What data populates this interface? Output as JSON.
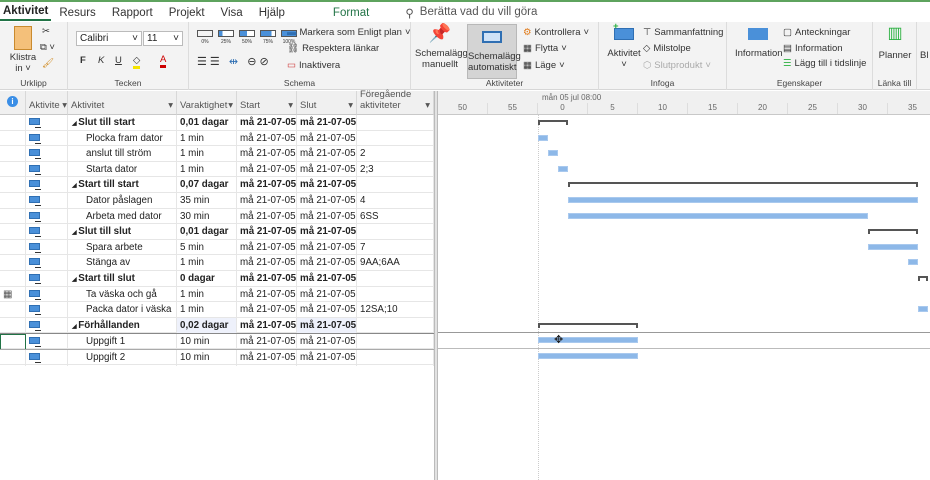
{
  "tabs": [
    "Aktivitet",
    "Resurs",
    "Rapport",
    "Projekt",
    "Visa",
    "Hjälp"
  ],
  "context_tab": "Format",
  "tell_me": "Berätta vad du vill göra",
  "ribbon": {
    "clipboard": {
      "label": "Urklipp",
      "paste": "Klistra in"
    },
    "font": {
      "label": "Tecken",
      "font_name": "Calibri",
      "font_size": "11",
      "bold": "F",
      "italic": "K",
      "underline": "U",
      "font_color": "A"
    },
    "schedule": {
      "label": "Schema",
      "pct": [
        "0%",
        "25%",
        "50%",
        "75%",
        "100%"
      ],
      "mark_on_track": "Markera som Enligt plan",
      "respect_links": "Respektera länkar",
      "inactivate": "Inaktivera"
    },
    "tasks": {
      "label": "Aktiviteter",
      "manual": "Schemalägg manuellt",
      "auto": "Schemalägg automatiskt",
      "inspect": "Kontrollera",
      "move": "Flytta",
      "mode": "Läge"
    },
    "insert": {
      "label": "Infoga",
      "task": "Aktivitet",
      "summary": "Sammanfattning",
      "milestone": "Milstolpe",
      "deliverable": "Slutprodukt"
    },
    "properties": {
      "label": "Egenskaper",
      "information": "Information",
      "notes": "Anteckningar",
      "details": "Information",
      "add_timeline": "Lägg till i tidslinje"
    },
    "link": {
      "label": "Länka till",
      "planner": "Planner"
    },
    "cut_off": "Bl"
  },
  "columns": [
    "Aktivite",
    "Aktivitet",
    "Varaktighet",
    "Start",
    "Slut",
    "Föregående aktiviteter"
  ],
  "rows": [
    {
      "name": "Slut till start",
      "duration": "0,01 dagar",
      "start": "må 21-07-05",
      "end": "må 21-07-05",
      "pred": "",
      "summary": true
    },
    {
      "name": "Plocka fram dator",
      "duration": "1 min",
      "start": "må 21-07-05",
      "end": "må 21-07-05",
      "pred": ""
    },
    {
      "name": "anslut till ström",
      "duration": "1 min",
      "start": "må 21-07-05",
      "end": "må 21-07-05",
      "pred": "2"
    },
    {
      "name": "Starta dator",
      "duration": "1 min",
      "start": "må 21-07-05",
      "end": "må 21-07-05",
      "pred": "2;3"
    },
    {
      "name": "Start till start",
      "duration": "0,07 dagar",
      "start": "må 21-07-05",
      "end": "må 21-07-05",
      "pred": "",
      "summary": true
    },
    {
      "name": "Dator påslagen",
      "duration": "35 min",
      "start": "må 21-07-05",
      "end": "må 21-07-05",
      "pred": "4"
    },
    {
      "name": "Arbeta med dator",
      "duration": "30 min",
      "start": "må 21-07-05",
      "end": "må 21-07-05",
      "pred": "6SS"
    },
    {
      "name": "Slut till slut",
      "duration": "0,01 dagar",
      "start": "må 21-07-05",
      "end": "må 21-07-05",
      "pred": "",
      "summary": true
    },
    {
      "name": "Spara arbete",
      "duration": "5 min",
      "start": "må 21-07-05",
      "end": "må 21-07-05",
      "pred": "7"
    },
    {
      "name": "Stänga av",
      "duration": "1 min",
      "start": "må 21-07-05",
      "end": "må 21-07-05",
      "pred": "9AA;6AA"
    },
    {
      "name": "Start till slut",
      "duration": "0 dagar",
      "start": "må 21-07-05",
      "end": "må 21-07-05",
      "pred": "",
      "summary": true
    },
    {
      "name": "Ta väska och gå",
      "duration": "1 min",
      "start": "må 21-07-05",
      "end": "må 21-07-05",
      "pred": ""
    },
    {
      "name": "Packa dator i väska",
      "duration": "1 min",
      "start": "må 21-07-05",
      "end": "må 21-07-05",
      "pred": "12SA;10"
    },
    {
      "name": "Förhållanden",
      "duration": "0,02 dagar",
      "start": "må 21-07-05",
      "end": "må 21-07-05",
      "pred": "",
      "summary": true
    },
    {
      "name": "Uppgift 1",
      "duration": "10 min",
      "start": "må 21-07-05",
      "end": "må 21-07-05",
      "pred": ""
    },
    {
      "name": "Uppgift 2",
      "duration": "10 min",
      "start": "må 21-07-05",
      "end": "må 21-07-05",
      "pred": ""
    }
  ],
  "timescale": {
    "top": "mån 05 jul 08:00",
    "ticks": [
      "50",
      "55",
      "0",
      "5",
      "10",
      "15",
      "20",
      "25",
      "30",
      "35"
    ]
  },
  "gantt_bars_minutes": [
    {
      "row": 0,
      "start": 0,
      "end": 3,
      "summary": true
    },
    {
      "row": 1,
      "start": 0,
      "end": 1
    },
    {
      "row": 2,
      "start": 1,
      "end": 2
    },
    {
      "row": 3,
      "start": 2,
      "end": 3
    },
    {
      "row": 4,
      "start": 3,
      "end": 38,
      "summary": true
    },
    {
      "row": 5,
      "start": 3,
      "end": 38
    },
    {
      "row": 6,
      "start": 3,
      "end": 33
    },
    {
      "row": 7,
      "start": 33,
      "end": 38,
      "summary": true
    },
    {
      "row": 8,
      "start": 33,
      "end": 38
    },
    {
      "row": 9,
      "start": 37,
      "end": 38
    },
    {
      "row": 10,
      "start": 38,
      "end": 39,
      "summary": true
    },
    {
      "row": 12,
      "start": 38,
      "end": 39
    },
    {
      "row": 13,
      "start": 0,
      "end": 10,
      "summary": true
    },
    {
      "row": 14,
      "start": 0,
      "end": 10
    },
    {
      "row": 15,
      "start": 0,
      "end": 10
    }
  ],
  "colors": {
    "bar": "#8db8e8",
    "accent": "#217346"
  }
}
